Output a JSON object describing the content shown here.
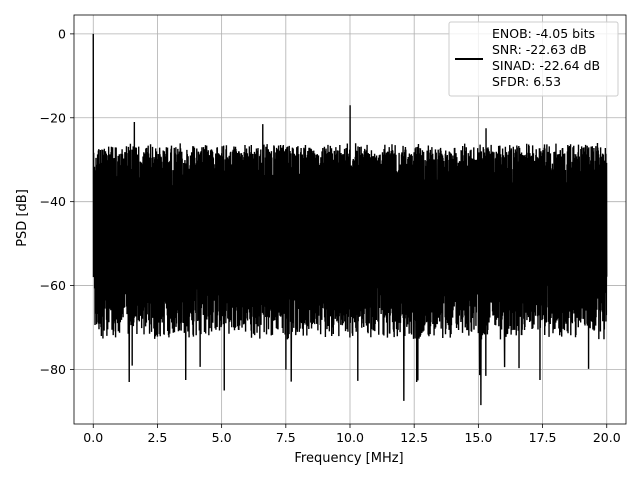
{
  "chart_data": {
    "type": "line",
    "xlabel": "Frequency [MHz]",
    "ylabel": "PSD [dB]",
    "xlim": [
      -0.75,
      20.75
    ],
    "ylim": [
      -93,
      4.5
    ],
    "xticks": [
      0.0,
      2.5,
      5.0,
      7.5,
      10.0,
      12.5,
      15.0,
      17.5,
      20.0
    ],
    "xtick_labels": [
      "0.0",
      "2.5",
      "5.0",
      "7.5",
      "10.0",
      "12.5",
      "15.0",
      "17.5",
      "20.0"
    ],
    "yticks": [
      0,
      -20,
      -40,
      -60,
      -80
    ],
    "ytick_labels": [
      "0",
      "−20",
      "−40",
      "−60",
      "−80"
    ],
    "grid": true,
    "legend_position": "top-right",
    "series": [
      {
        "color": "#000000",
        "noise_band": {
          "x_range": [
            0.0,
            20.0
          ],
          "upper_envelope_db": -26,
          "lower_envelope_db": -73
        },
        "peaks": [
          {
            "x": 0.0,
            "y": 0
          },
          {
            "x": 1.6,
            "y": -21
          },
          {
            "x": 6.6,
            "y": -21.5
          },
          {
            "x": 10.0,
            "y": -17
          },
          {
            "x": 15.3,
            "y": -22.5
          }
        ],
        "minima": [
          {
            "x": 1.4,
            "y": -83
          },
          {
            "x": 3.6,
            "y": -82.5
          },
          {
            "x": 5.1,
            "y": -85
          },
          {
            "x": 12.1,
            "y": -87.5
          },
          {
            "x": 15.1,
            "y": -88.5
          },
          {
            "x": 12.6,
            "y": -83
          },
          {
            "x": 17.4,
            "y": -82.5
          }
        ]
      }
    ],
    "legend": {
      "color": "#000000",
      "lines": [
        "ENOB: -4.05 bits",
        "SNR: -22.63 dB",
        "SINAD: -22.64 dB",
        "SFDR: 6.53"
      ]
    }
  }
}
